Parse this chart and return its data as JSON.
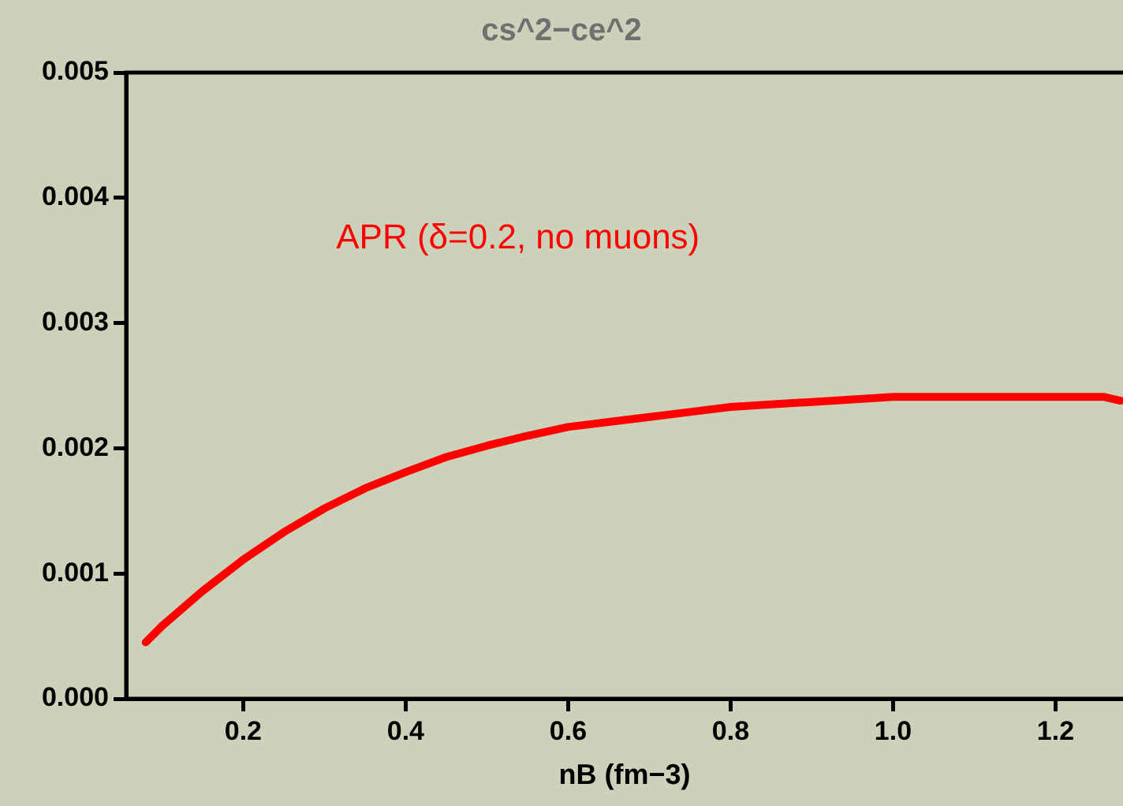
{
  "chart_data": {
    "type": "line",
    "title": "cs^2−ce^2",
    "xlabel": "nB (fm−3)",
    "annotations": [
      "APR (δ=0.2, no muons)"
    ],
    "series": [
      {
        "color": "#ff0000",
        "x": [
          0.08,
          0.1,
          0.15,
          0.2,
          0.25,
          0.3,
          0.35,
          0.4,
          0.45,
          0.5,
          0.55,
          0.6,
          0.65,
          0.7,
          0.75,
          0.8,
          0.85,
          0.9,
          1.0,
          1.1,
          1.2,
          1.26,
          1.28
        ],
        "values": [
          0.00045,
          0.00058,
          0.00086,
          0.00111,
          0.00133,
          0.00152,
          0.00168,
          0.00181,
          0.00193,
          0.00202,
          0.0021,
          0.00217,
          0.00221,
          0.00225,
          0.00229,
          0.00233,
          0.00235,
          0.00237,
          0.00241,
          0.00241,
          0.00241,
          0.00241,
          0.00238
        ]
      }
    ],
    "xlim": [
      0.056,
      1.283
    ],
    "ylim": [
      0,
      0.005
    ],
    "xticks": [
      0.2,
      0.4,
      0.6,
      0.8,
      {
        "value": 1,
        "label": "1.0"
      },
      1.2
    ],
    "yticks": [
      {
        "value": 0,
        "label": "0.000"
      },
      0.001,
      0.002,
      0.003,
      0.004,
      0.005
    ],
    "grid": false,
    "legend": false,
    "marker": "none",
    "line_style": "solid"
  }
}
